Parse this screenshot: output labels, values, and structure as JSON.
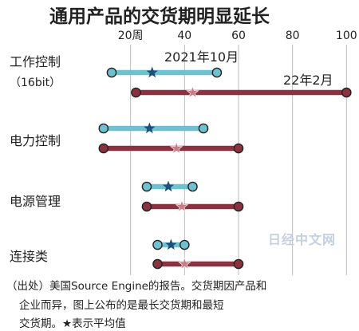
{
  "title": "通用产品的交货期明显延长",
  "chart_data": {
    "type": "dumbbell",
    "title": "通用产品的交货期明显延长",
    "x_ticks": [
      {
        "value": 20,
        "label": "20周"
      },
      {
        "value": 40,
        "label": "40"
      },
      {
        "value": 60,
        "label": "60"
      },
      {
        "value": 80,
        "label": "80"
      },
      {
        "value": 100,
        "label": "100"
      }
    ],
    "xlim": [
      0,
      100
    ],
    "grid": "vertical",
    "series": [
      {
        "name": "2021年10月",
        "color": "#6fc1d0"
      },
      {
        "name": "22年2月",
        "color": "#8a3340"
      }
    ],
    "categories": [
      {
        "label": "工作控制",
        "sublabel": "（16bit）",
        "data": [
          {
            "min": 13,
            "max": 52,
            "avg": 28
          },
          {
            "min": 22,
            "max": 100,
            "avg": 43
          }
        ]
      },
      {
        "label": "电力控制",
        "sublabel": "",
        "data": [
          {
            "min": 10,
            "max": 47,
            "avg": 27
          },
          {
            "min": 10,
            "max": 60,
            "avg": 37
          }
        ]
      },
      {
        "label": "电源管理",
        "sublabel": "",
        "data": [
          {
            "min": 26,
            "max": 43,
            "avg": 34
          },
          {
            "min": 26,
            "max": 60,
            "avg": 39
          }
        ]
      },
      {
        "label": "连接类",
        "sublabel": "",
        "data": [
          {
            "min": 30,
            "max": 40,
            "avg": 35
          },
          {
            "min": 30,
            "max": 60,
            "avg": 40
          }
        ]
      }
    ],
    "annotations": [
      "2021年10月",
      "22年2月"
    ]
  },
  "footnote": [
    "（出处）美国Source Engine的报告。交货期因产品和",
    "企业而异，图上公布的是最长交货期和最短",
    "交货期。★表示平均值"
  ],
  "watermark": "日经中文网"
}
